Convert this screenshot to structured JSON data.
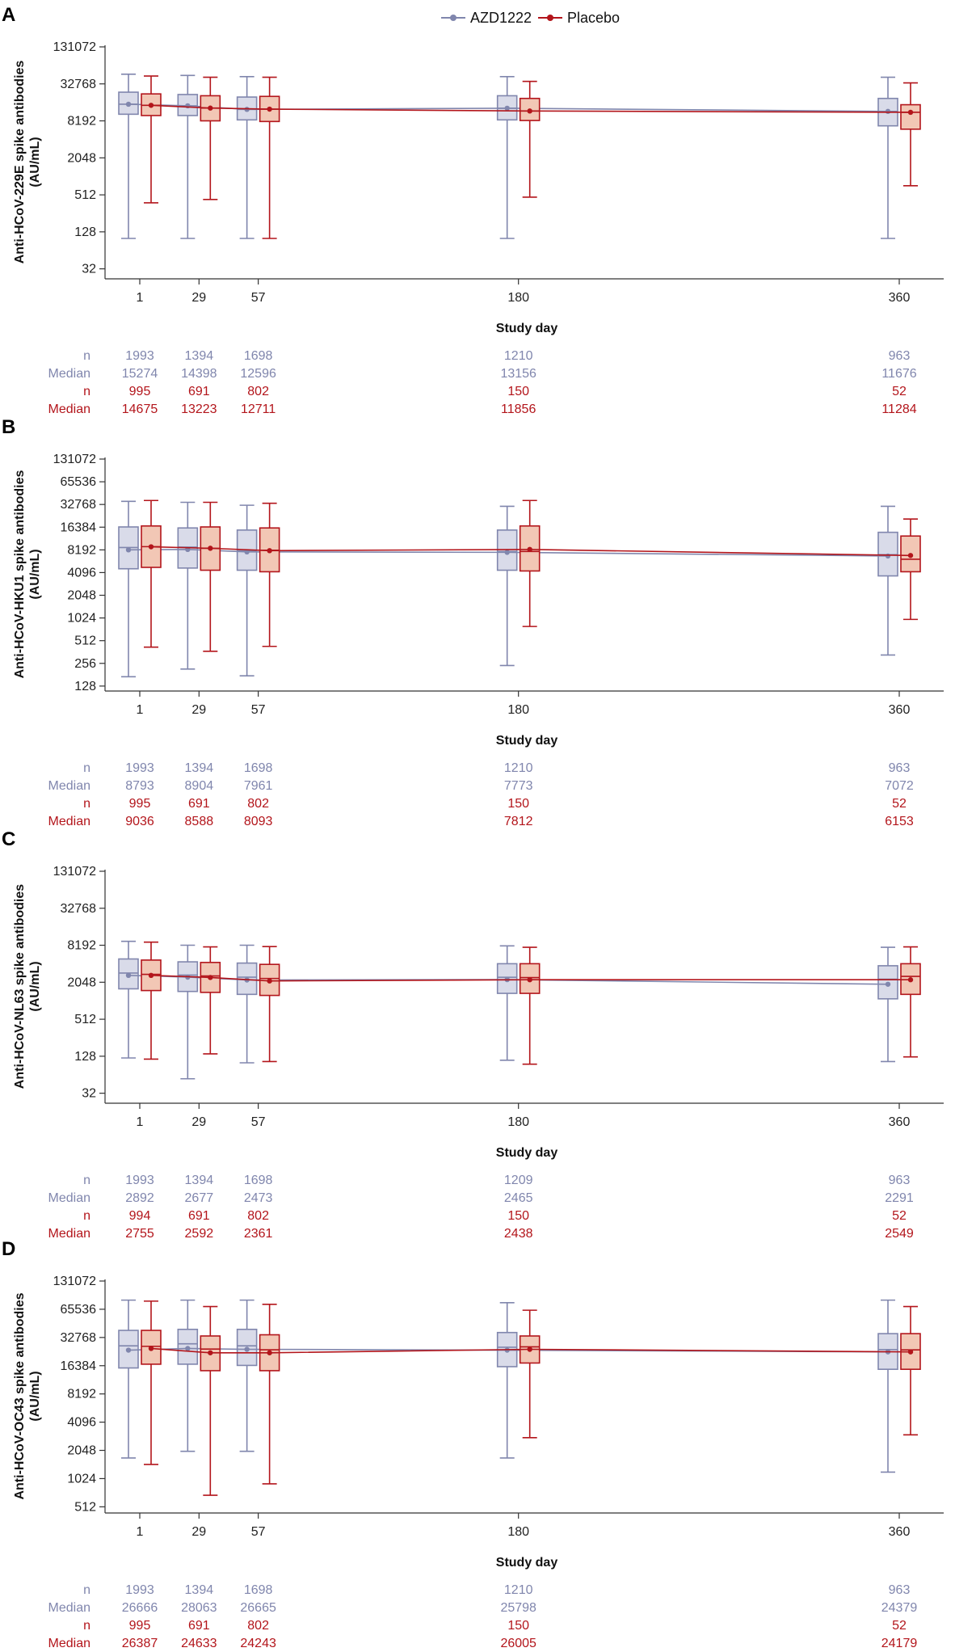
{
  "legend": {
    "series_a": "AZD1222",
    "series_b": "Placebo"
  },
  "colors": {
    "a_stroke": "#8086ad",
    "a_fill": "#d9dbe9",
    "b_stroke": "#b3151b",
    "b_fill": "#f2c7b5",
    "axis": "#333333"
  },
  "chart_data": [
    {
      "panel": "A",
      "type": "box",
      "ylabel_line1": "Anti-HCoV-229E spike antibodies",
      "ylabel_line2": "(AU/mL)",
      "xlabel": "Study day",
      "yscale": "log2",
      "ylim": [
        22,
        131072
      ],
      "yticks": [
        32,
        128,
        512,
        2048,
        8192,
        32768,
        131072
      ],
      "ytick_labels": [
        "32",
        "128",
        "512",
        "2048",
        "8192",
        "32768",
        "131072"
      ],
      "categories": [
        "1",
        "29",
        "57",
        "180",
        "360"
      ],
      "x": [
        1,
        29,
        57,
        180,
        360
      ],
      "series": [
        {
          "name": "AZD1222",
          "boxes": [
            {
              "min": 100,
              "q1": 10500,
              "median": 15274,
              "q3": 24000,
              "max": 47000,
              "mean": 15274
            },
            {
              "min": 100,
              "q1": 10000,
              "median": 14398,
              "q3": 22000,
              "max": 45000,
              "mean": 14398
            },
            {
              "min": 100,
              "q1": 8500,
              "median": 12596,
              "q3": 20000,
              "max": 43000,
              "mean": 12596
            },
            {
              "min": 100,
              "q1": 8500,
              "median": 13156,
              "q3": 21000,
              "max": 43000,
              "mean": 13156
            },
            {
              "min": 100,
              "q1": 6800,
              "median": 11676,
              "q3": 19000,
              "max": 42000,
              "mean": 11676
            }
          ]
        },
        {
          "name": "Placebo",
          "boxes": [
            {
              "min": 380,
              "q1": 10000,
              "median": 14675,
              "q3": 22500,
              "max": 44000,
              "mean": 14675
            },
            {
              "min": 430,
              "q1": 8200,
              "median": 13223,
              "q3": 21000,
              "max": 42000,
              "mean": 13223
            },
            {
              "min": 100,
              "q1": 8000,
              "median": 12711,
              "q3": 20500,
              "max": 42000,
              "mean": 12711
            },
            {
              "min": 470,
              "q1": 8300,
              "median": 11856,
              "q3": 19000,
              "max": 36000,
              "mean": 11856
            },
            {
              "min": 720,
              "q1": 6000,
              "median": 11284,
              "q3": 15000,
              "max": 34000,
              "mean": 11284
            }
          ]
        }
      ],
      "table": [
        {
          "label": "n",
          "series": "a",
          "values": [
            "1993",
            "1394",
            "1698",
            "1210",
            "963"
          ]
        },
        {
          "label": "Median",
          "series": "a",
          "values": [
            "15274",
            "14398",
            "12596",
            "13156",
            "11676"
          ]
        },
        {
          "label": "n",
          "series": "b",
          "values": [
            "995",
            "691",
            "802",
            "150",
            "52"
          ]
        },
        {
          "label": "Median",
          "series": "b",
          "values": [
            "14675",
            "13223",
            "12711",
            "11856",
            "11284"
          ]
        }
      ]
    },
    {
      "panel": "B",
      "type": "box",
      "ylabel_line1": "Anti-HCoV-HKU1 spike antibodies",
      "ylabel_line2": "(AU/mL)",
      "xlabel": "Study day",
      "yscale": "log2",
      "ylim": [
        110,
        131072
      ],
      "yticks": [
        128,
        256,
        512,
        1024,
        2048,
        4096,
        8192,
        16384,
        32768,
        65536,
        131072
      ],
      "ytick_labels": [
        "128",
        "256",
        "512",
        "1024",
        "2048",
        "4096",
        "8192",
        "16384",
        "32768",
        "65536",
        "131072"
      ],
      "categories": [
        "1",
        "29",
        "57",
        "180",
        "360"
      ],
      "x": [
        1,
        29,
        57,
        180,
        360
      ],
      "series": [
        {
          "name": "AZD1222",
          "boxes": [
            {
              "min": 170,
              "q1": 4600,
              "median": 8793,
              "q3": 16500,
              "max": 36000,
              "mean": 8200
            },
            {
              "min": 215,
              "q1": 4700,
              "median": 8904,
              "q3": 16000,
              "max": 35000,
              "mean": 8300
            },
            {
              "min": 175,
              "q1": 4400,
              "median": 7961,
              "q3": 15000,
              "max": 32000,
              "mean": 7700
            },
            {
              "min": 240,
              "q1": 4400,
              "median": 7773,
              "q3": 15000,
              "max": 31000,
              "mean": 7600
            },
            {
              "min": 330,
              "q1": 3700,
              "median": 7072,
              "q3": 14000,
              "max": 31000,
              "mean": 6800
            }
          ]
        },
        {
          "name": "Placebo",
          "boxes": [
            {
              "min": 420,
              "q1": 4800,
              "median": 9036,
              "q3": 17000,
              "max": 37000,
              "mean": 9000
            },
            {
              "min": 370,
              "q1": 4400,
              "median": 8588,
              "q3": 16500,
              "max": 35000,
              "mean": 8600
            },
            {
              "min": 430,
              "q1": 4200,
              "median": 8093,
              "q3": 16000,
              "max": 34000,
              "mean": 8000
            },
            {
              "min": 790,
              "q1": 4300,
              "median": 7812,
              "q3": 17000,
              "max": 37000,
              "mean": 8300
            },
            {
              "min": 980,
              "q1": 4200,
              "median": 6153,
              "q3": 12500,
              "max": 21000,
              "mean": 6900
            }
          ]
        }
      ],
      "table": [
        {
          "label": "n",
          "series": "a",
          "values": [
            "1993",
            "1394",
            "1698",
            "1210",
            "963"
          ]
        },
        {
          "label": "Median",
          "series": "a",
          "values": [
            "8793",
            "8904",
            "7961",
            "7773",
            "7072"
          ]
        },
        {
          "label": "n",
          "series": "b",
          "values": [
            "995",
            "691",
            "802",
            "150",
            "52"
          ]
        },
        {
          "label": "Median",
          "series": "b",
          "values": [
            "9036",
            "8588",
            "8093",
            "7812",
            "6153"
          ]
        }
      ]
    },
    {
      "panel": "C",
      "type": "box",
      "ylabel_line1": "Anti-HCoV-NL63 spike antibodies",
      "ylabel_line2": "(AU/mL)",
      "xlabel": "Study day",
      "yscale": "log2",
      "ylim": [
        22,
        131072
      ],
      "yticks": [
        32,
        128,
        512,
        2048,
        8192,
        32768,
        131072
      ],
      "ytick_labels": [
        "32",
        "128",
        "512",
        "2048",
        "8192",
        "32768",
        "131072"
      ],
      "categories": [
        "1",
        "29",
        "57",
        "180",
        "360"
      ],
      "x": [
        1,
        29,
        57,
        180,
        360
      ],
      "series": [
        {
          "name": "AZD1222",
          "boxes": [
            {
              "min": 120,
              "q1": 1600,
              "median": 2892,
              "q3": 4900,
              "max": 9500,
              "mean": 2650
            },
            {
              "min": 55,
              "q1": 1450,
              "median": 2677,
              "q3": 4400,
              "max": 8200,
              "mean": 2480
            },
            {
              "min": 100,
              "q1": 1300,
              "median": 2473,
              "q3": 4200,
              "max": 8200,
              "mean": 2230
            },
            {
              "min": 110,
              "q1": 1350,
              "median": 2465,
              "q3": 4100,
              "max": 8000,
              "mean": 2260
            },
            {
              "min": 105,
              "q1": 1100,
              "median": 2291,
              "q3": 3800,
              "max": 7600,
              "mean": 1900
            }
          ]
        },
        {
          "name": "Placebo",
          "boxes": [
            {
              "min": 115,
              "q1": 1500,
              "median": 2755,
              "q3": 4700,
              "max": 9200,
              "mean": 2650
            },
            {
              "min": 140,
              "q1": 1400,
              "median": 2592,
              "q3": 4300,
              "max": 7700,
              "mean": 2450
            },
            {
              "min": 105,
              "q1": 1250,
              "median": 2361,
              "q3": 4000,
              "max": 7800,
              "mean": 2150
            },
            {
              "min": 95,
              "q1": 1350,
              "median": 2438,
              "q3": 4100,
              "max": 7600,
              "mean": 2250
            },
            {
              "min": 125,
              "q1": 1300,
              "median": 2549,
              "q3": 4100,
              "max": 7700,
              "mean": 2250
            }
          ]
        }
      ],
      "table": [
        {
          "label": "n",
          "series": "a",
          "values": [
            "1993",
            "1394",
            "1698",
            "1209",
            "963"
          ]
        },
        {
          "label": "Median",
          "series": "a",
          "values": [
            "2892",
            "2677",
            "2473",
            "2465",
            "2291"
          ]
        },
        {
          "label": "n",
          "series": "b",
          "values": [
            "994",
            "691",
            "802",
            "150",
            "52"
          ]
        },
        {
          "label": "Median",
          "series": "b",
          "values": [
            "2755",
            "2592",
            "2361",
            "2438",
            "2549"
          ]
        }
      ]
    },
    {
      "panel": "D",
      "type": "box",
      "ylabel_line1": "Anti-HCoV-OC43 spike antibodies",
      "ylabel_line2": "(AU/mL)",
      "xlabel": "Study day",
      "yscale": "log2",
      "ylim": [
        440,
        131072
      ],
      "yticks": [
        512,
        1024,
        2048,
        4096,
        8192,
        16384,
        32768,
        65536,
        131072
      ],
      "ytick_labels": [
        "512",
        "1024",
        "2048",
        "4096",
        "8192",
        "16384",
        "32768",
        "65536",
        "131072"
      ],
      "categories": [
        "1",
        "29",
        "57",
        "180",
        "360"
      ],
      "x": [
        1,
        29,
        57,
        180,
        360
      ],
      "series": [
        {
          "name": "AZD1222",
          "boxes": [
            {
              "min": 1700,
              "q1": 15500,
              "median": 26666,
              "q3": 39000,
              "max": 82000,
              "mean": 24000
            },
            {
              "min": 2000,
              "q1": 17000,
              "median": 28063,
              "q3": 40000,
              "max": 82000,
              "mean": 25000
            },
            {
              "min": 2000,
              "q1": 16500,
              "median": 26665,
              "q3": 40000,
              "max": 82000,
              "mean": 24500
            },
            {
              "min": 1700,
              "q1": 16000,
              "median": 25798,
              "q3": 37000,
              "max": 77000,
              "mean": 24000
            },
            {
              "min": 1200,
              "q1": 15000,
              "median": 24379,
              "q3": 36000,
              "max": 82000,
              "mean": 23000
            }
          ]
        },
        {
          "name": "Placebo",
          "boxes": [
            {
              "min": 1450,
              "q1": 17000,
              "median": 26387,
              "q3": 39000,
              "max": 80000,
              "mean": 25000
            },
            {
              "min": 680,
              "q1": 14500,
              "median": 24633,
              "q3": 34000,
              "max": 70000,
              "mean": 22500
            },
            {
              "min": 900,
              "q1": 14500,
              "median": 24243,
              "q3": 35000,
              "max": 74000,
              "mean": 22500
            },
            {
              "min": 2800,
              "q1": 17500,
              "median": 26005,
              "q3": 34000,
              "max": 64000,
              "mean": 24500
            },
            {
              "min": 3000,
              "q1": 15000,
              "median": 24179,
              "q3": 36000,
              "max": 70000,
              "mean": 23000
            }
          ]
        }
      ],
      "table": [
        {
          "label": "n",
          "series": "a",
          "values": [
            "1993",
            "1394",
            "1698",
            "1210",
            "963"
          ]
        },
        {
          "label": "Median",
          "series": "a",
          "values": [
            "26666",
            "28063",
            "26665",
            "25798",
            "24379"
          ]
        },
        {
          "label": "n",
          "series": "b",
          "values": [
            "995",
            "691",
            "802",
            "150",
            "52"
          ]
        },
        {
          "label": "Median",
          "series": "b",
          "values": [
            "26387",
            "24633",
            "24243",
            "26005",
            "24179"
          ]
        }
      ]
    }
  ]
}
